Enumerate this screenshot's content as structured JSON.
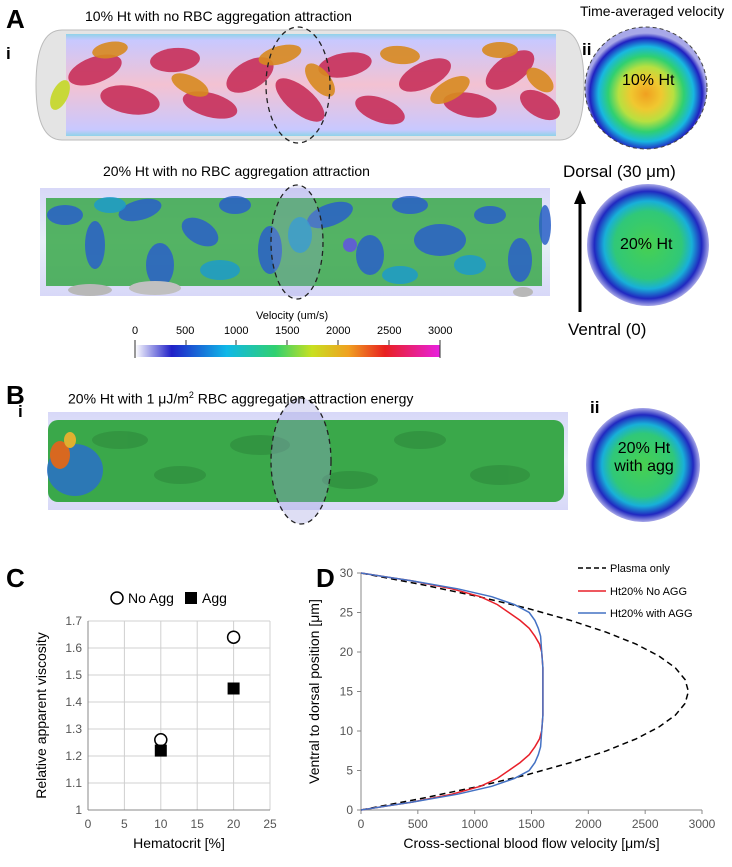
{
  "panels": {
    "A": {
      "letter": "A",
      "sub_i": "i",
      "sub_ii": "ii",
      "caption_top": "10% Ht with no RBC aggregation attraction",
      "caption_mid": "20% Ht with no RBC aggregation attraction",
      "time_avg_title": "Time-averaged velocity",
      "disk1_label": "10% Ht",
      "disk2_label": "20% Ht",
      "dorsal_label": "Dorsal (30 μm)",
      "ventral_label": "Ventral (0)",
      "colorbar": {
        "title": "Velocity (um/s)",
        "ticks": [
          "0",
          "500",
          "1000",
          "1500",
          "2000",
          "2500",
          "3000"
        ]
      }
    },
    "B": {
      "letter": "B",
      "sub_i": "i",
      "sub_ii": "ii",
      "caption_pre": "20% Ht with 1 μJ/m",
      "caption_sup": "2",
      "caption_post": " RBC aggregation attraction energy",
      "disk_label_line1": "20% Ht",
      "disk_label_line2": "with agg"
    },
    "C": {
      "letter": "C"
    },
    "D": {
      "letter": "D"
    }
  },
  "colors": {
    "no_agg": "#e8202a",
    "with_agg": "#4472c4",
    "plasma": "#000000"
  },
  "chart_data": [
    {
      "type": "scatter",
      "panel": "C",
      "xlabel": "Hematocrit [%]",
      "ylabel": "Relative apparent viscosity",
      "xlim": [
        0,
        25
      ],
      "ylim": [
        1,
        1.7
      ],
      "xticks": [
        "0",
        "5",
        "10",
        "15",
        "20",
        "25"
      ],
      "yticks": [
        "1",
        "1.1",
        "1.2",
        "1.3",
        "1.4",
        "1.5",
        "1.6",
        "1.7"
      ],
      "grid": true,
      "legend_position": "top",
      "series": [
        {
          "name": "No Agg",
          "marker": "open-circle",
          "x": [
            10,
            20
          ],
          "y": [
            1.26,
            1.64
          ]
        },
        {
          "name": "Agg",
          "marker": "filled-square",
          "x": [
            10,
            20
          ],
          "y": [
            1.22,
            1.45
          ]
        }
      ]
    },
    {
      "type": "line",
      "panel": "D",
      "xlabel": "Cross-sectional blood flow velocity [μm/s]",
      "ylabel": "Ventral to dorsal position  [μm]",
      "xlim": [
        0,
        3000
      ],
      "ylim": [
        0,
        30
      ],
      "xticks": [
        "0",
        "500",
        "1000",
        "1500",
        "2000",
        "2500",
        "3000"
      ],
      "yticks": [
        "0",
        "5",
        "10",
        "15",
        "20",
        "25",
        "30"
      ],
      "grid": false,
      "legend_position": "top-right",
      "series": [
        {
          "name": "Plasma only",
          "style": "dashed",
          "x": [
            0,
            547,
            1037,
            1469,
            1843,
            2160,
            2419,
            2621,
            2765,
            2851,
            2880,
            2851,
            2765,
            2621,
            2419,
            2160,
            1843,
            1469,
            1037,
            547,
            0
          ],
          "y": [
            0,
            1.5,
            3,
            4.5,
            6,
            7.5,
            9,
            10.5,
            12,
            13.5,
            15,
            16.5,
            18,
            19.5,
            21,
            22.5,
            24,
            25.5,
            27,
            28.5,
            30
          ]
        },
        {
          "name": "Ht20% No AGG",
          "style": "solid",
          "x": [
            0,
            450,
            800,
            1050,
            1200,
            1300,
            1400,
            1480,
            1530,
            1570,
            1590,
            1600,
            1600,
            1590,
            1570,
            1530,
            1480,
            1400,
            1300,
            1200,
            1050,
            800,
            450,
            0
          ],
          "y": [
            0,
            1,
            2,
            3,
            4,
            5,
            6,
            7,
            8,
            9,
            10,
            12,
            18,
            20,
            21,
            22,
            23,
            24,
            25,
            26,
            27,
            28,
            29,
            30
          ]
        },
        {
          "name": "Ht20% with AGG",
          "style": "solid",
          "x": [
            0,
            450,
            850,
            1150,
            1350,
            1480,
            1530,
            1560,
            1580,
            1590,
            1600,
            1600,
            1590,
            1580,
            1560,
            1530,
            1480,
            1350,
            1150,
            850,
            450,
            0
          ],
          "y": [
            0,
            1,
            2,
            3,
            4,
            5,
            6,
            7,
            8,
            10,
            12,
            18,
            20,
            22,
            23,
            24,
            25,
            26,
            27,
            28,
            29,
            30
          ]
        }
      ]
    }
  ]
}
